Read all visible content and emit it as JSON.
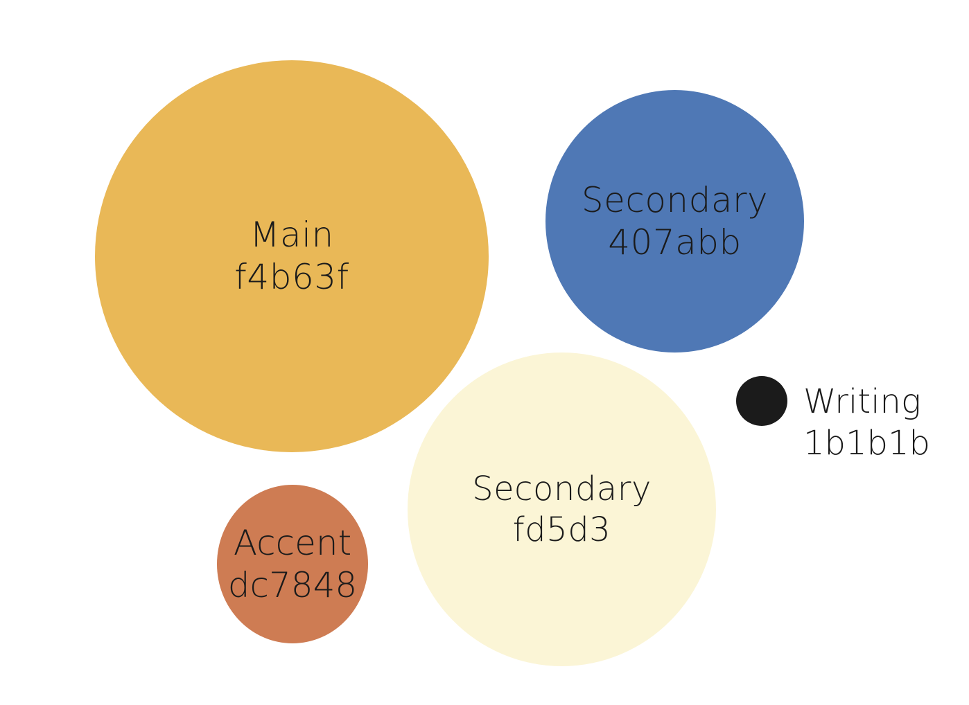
{
  "swatches": {
    "main": {
      "name": "Main",
      "hex": "f4b63f",
      "color": "#e9b857"
    },
    "secondary_blue": {
      "name": "Secondary",
      "hex": "407abb",
      "color": "#4f78b5"
    },
    "secondary_cream": {
      "name": "Secondary",
      "hex": "fd5d3",
      "color": "#fbf5d6"
    },
    "accent": {
      "name": "Accent",
      "hex": "dc7848",
      "color": "#ce7c53"
    },
    "writing": {
      "name": "Writing",
      "hex": "1b1b1b",
      "color": "#1b1b1b"
    }
  },
  "text_color": "#1b1b1b"
}
